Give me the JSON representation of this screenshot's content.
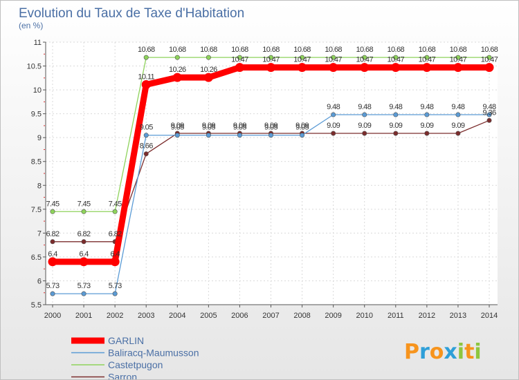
{
  "chart_data": {
    "type": "line",
    "title": "Evolution du Taux de Taxe d'Habitation",
    "ylabel": "(en %)",
    "xlabel": "",
    "x": [
      2000,
      2001,
      2002,
      2003,
      2004,
      2005,
      2006,
      2007,
      2008,
      2009,
      2010,
      2011,
      2012,
      2013,
      2014
    ],
    "x_tick_labels": [
      "2000",
      "2001",
      "2002",
      "2003",
      "2004",
      "2005",
      "2006",
      "2007",
      "2008",
      "2009",
      "2010",
      "2011",
      "2012",
      "2013",
      "2014"
    ],
    "ylim": [
      5.5,
      11
    ],
    "y_ticks": [
      5.5,
      6,
      6.5,
      7,
      7.5,
      8,
      8.5,
      9,
      9.5,
      10,
      10.5,
      11
    ],
    "y_tick_labels": [
      "5.5",
      "6",
      "6.5",
      "7",
      "7.5",
      "8",
      "8.5",
      "9",
      "9.5",
      "10",
      "10.5",
      "11"
    ],
    "grid": true,
    "legend_position": "bottom-left",
    "series": [
      {
        "name": "GARLIN",
        "color": "#ff0000",
        "values": [
          6.4,
          6.4,
          6.4,
          10.11,
          10.26,
          10.26,
          10.47,
          10.47,
          10.47,
          10.47,
          10.47,
          10.47,
          10.47,
          10.47,
          10.47
        ],
        "labels": [
          "6.4",
          "6.4",
          "6.4",
          "10.11",
          "10.26",
          "10.26",
          "10.47",
          "10.47",
          "10.47",
          "10.47",
          "10.47",
          "10.47",
          "10.47",
          "10.47",
          "10.47"
        ]
      },
      {
        "name": "Baliracq-Maumusson",
        "color": "#5b9bd5",
        "values": [
          5.73,
          5.73,
          5.73,
          9.05,
          9.05,
          9.05,
          9.05,
          9.05,
          9.05,
          9.48,
          9.48,
          9.48,
          9.48,
          9.48,
          9.48
        ],
        "labels": [
          "5.73",
          "5.73",
          "5.73",
          "9.05",
          "9.05",
          "9.05",
          "9.05",
          "9.05",
          "9.05",
          "9.48",
          "9.48",
          "9.48",
          "9.48",
          "9.48",
          "9.48"
        ]
      },
      {
        "name": "Castetpugon",
        "color": "#8ed35b",
        "values": [
          7.45,
          7.45,
          7.45,
          10.68,
          10.68,
          10.68,
          10.68,
          10.68,
          10.68,
          10.68,
          10.68,
          10.68,
          10.68,
          10.68,
          10.68
        ],
        "labels": [
          "7.45",
          "7.45",
          "7.45",
          "10.68",
          "10.68",
          "10.68",
          "10.68",
          "10.68",
          "10.68",
          "10.68",
          "10.68",
          "10.68",
          "10.68",
          "10.68",
          "10.68"
        ]
      },
      {
        "name": "Sarron",
        "color": "#7b2c2c",
        "values": [
          6.82,
          6.82,
          6.82,
          8.66,
          9.09,
          9.09,
          9.09,
          9.09,
          9.09,
          9.09,
          9.09,
          9.09,
          9.09,
          9.09,
          9.36
        ],
        "labels": [
          "6.82",
          "6.82",
          "6.82",
          "8.66",
          "9.09",
          "9.09",
          "9.09",
          "9.09",
          "9.09",
          "9.09",
          "9.09",
          "9.09",
          "9.09",
          "9.09",
          "9.36"
        ]
      }
    ]
  },
  "branding": {
    "logo_text": "Proxiti",
    "logo_letters": [
      "P",
      "r",
      "o",
      "x",
      "i",
      "t",
      "i"
    ],
    "logo_colors": [
      "#f7941d",
      "#2e9fd8",
      "#f7941d",
      "#2e9fd8",
      "#8dc63f",
      "#f7941d",
      "#8dc63f"
    ]
  }
}
